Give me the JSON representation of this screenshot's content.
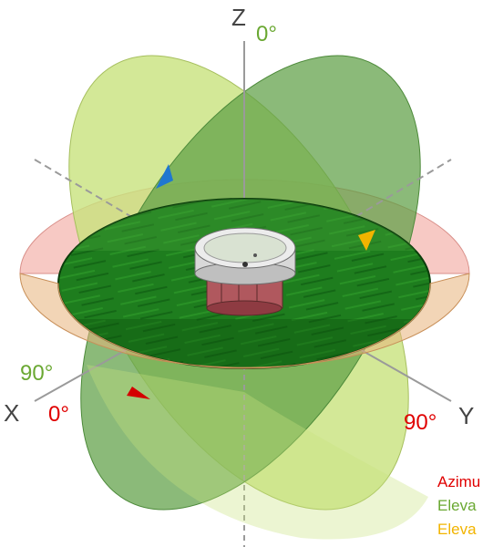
{
  "axes": {
    "x_label": "X",
    "y_label": "Y",
    "z_label": "Z"
  },
  "angle_labels": {
    "z_zero": "0°",
    "x_ninety": "90°",
    "x_zero": "0°",
    "y_ninety": "90°"
  },
  "legend": [
    {
      "text": "Azimu",
      "color": "#e00000"
    },
    {
      "text": "Eleva",
      "color": "#6aa832"
    },
    {
      "text": "Eleva",
      "color": "#f2b400"
    }
  ],
  "colors": {
    "azimuth": "#e00000",
    "elevation_green": "#6aa832",
    "elevation_orange": "#f2b400",
    "azimuth_plane": "#f4b7b0",
    "elevation_plane_light": "#cde68a",
    "elevation_plane_dark": "#6aa84f",
    "disc": "#1f7a1f",
    "arrow_blue": "#1f77d0",
    "axis_line": "#9a9a9a"
  }
}
